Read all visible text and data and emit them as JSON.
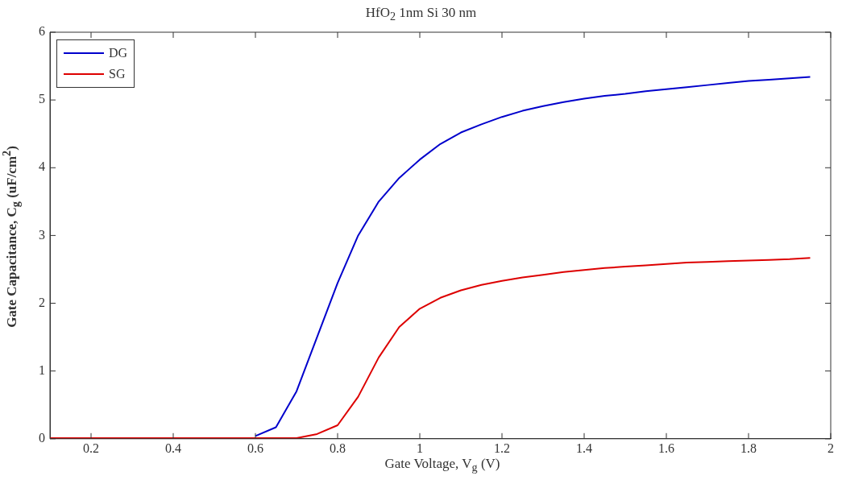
{
  "chart_data": {
    "type": "line",
    "title": "HfO$_{2}$ 1nm Si 30 nm",
    "xlabel": "Gate Voltage, V$_{g}$ (V)",
    "ylabel": "Gate Capacitance, C$_{g}$ (uF/cm$^{2}$)",
    "x": [
      0.1,
      0.15,
      0.2,
      0.25,
      0.3,
      0.35,
      0.4,
      0.45,
      0.5,
      0.55,
      0.6,
      0.65,
      0.7,
      0.75,
      0.8,
      0.85,
      0.9,
      0.95,
      1.0,
      1.05,
      1.1,
      1.15,
      1.2,
      1.25,
      1.3,
      1.35,
      1.4,
      1.45,
      1.5,
      1.55,
      1.6,
      1.65,
      1.7,
      1.75,
      1.8,
      1.85,
      1.9,
      1.95
    ],
    "series": [
      {
        "name": "DG",
        "color": "#0000cc",
        "values": [
          null,
          null,
          null,
          null,
          null,
          null,
          null,
          null,
          null,
          null,
          0.04,
          0.17,
          0.7,
          1.5,
          2.3,
          3.0,
          3.5,
          3.85,
          4.12,
          4.35,
          4.52,
          4.64,
          4.75,
          4.84,
          4.91,
          4.97,
          5.02,
          5.06,
          5.09,
          5.13,
          5.16,
          5.19,
          5.22,
          5.25,
          5.28,
          5.3,
          5.32,
          5.34
        ]
      },
      {
        "name": "SG",
        "color": "#dd0000",
        "values": [
          0.01,
          0.01,
          0.01,
          0.01,
          0.01,
          0.01,
          0.01,
          0.01,
          0.01,
          0.01,
          0.01,
          0.01,
          0.01,
          0.07,
          0.2,
          0.62,
          1.2,
          1.65,
          1.92,
          2.08,
          2.19,
          2.27,
          2.33,
          2.38,
          2.42,
          2.46,
          2.49,
          2.52,
          2.54,
          2.56,
          2.58,
          2.6,
          2.61,
          2.62,
          2.63,
          2.64,
          2.65,
          2.67
        ]
      }
    ],
    "xlim": [
      0.1,
      2
    ],
    "xticks": [
      0.2,
      0.4,
      0.6,
      0.8,
      1,
      1.2,
      1.4,
      1.6,
      1.8,
      2
    ],
    "ylim": [
      0,
      6
    ],
    "yticks": [
      0,
      1,
      2,
      3,
      4,
      5,
      6
    ],
    "grid": false,
    "legend": "top left",
    "marker": "none",
    "line_style": "solid"
  }
}
